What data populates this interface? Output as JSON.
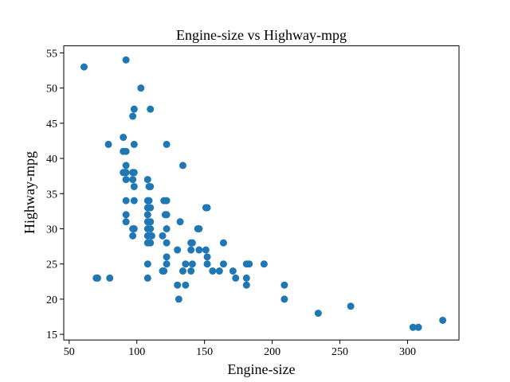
{
  "chart_data": {
    "type": "scatter",
    "title": "Engine-size vs Highway-mpg",
    "xlabel": "Engine-size",
    "ylabel": "Highway-mpg",
    "xlim": [
      46,
      338
    ],
    "ylim": [
      14.2,
      56.0
    ],
    "xticks": [
      50,
      100,
      150,
      200,
      250,
      300
    ],
    "yticks": [
      15,
      20,
      25,
      30,
      35,
      40,
      45,
      50,
      55
    ],
    "grid": false,
    "legend": "none",
    "marker_color": "#1f77b4",
    "series": [
      {
        "points": [
          [
            61,
            53
          ],
          [
            92,
            54
          ],
          [
            103,
            50
          ],
          [
            110,
            47
          ],
          [
            98,
            47
          ],
          [
            97,
            46
          ],
          [
            79,
            42
          ],
          [
            98,
            42
          ],
          [
            122,
            42
          ],
          [
            90,
            43
          ],
          [
            90,
            41
          ],
          [
            92,
            41
          ],
          [
            134,
            39
          ],
          [
            92,
            39
          ],
          [
            90,
            38
          ],
          [
            91,
            38
          ],
          [
            92,
            38
          ],
          [
            97,
            38
          ],
          [
            98,
            38
          ],
          [
            92,
            37
          ],
          [
            97,
            37
          ],
          [
            108,
            37
          ],
          [
            98,
            36
          ],
          [
            109,
            36
          ],
          [
            110,
            36
          ],
          [
            92,
            34
          ],
          [
            98,
            34
          ],
          [
            108,
            34
          ],
          [
            109,
            34
          ],
          [
            120,
            34
          ],
          [
            122,
            34
          ],
          [
            108,
            33
          ],
          [
            110,
            33
          ],
          [
            151,
            33
          ],
          [
            152,
            33
          ],
          [
            92,
            32
          ],
          [
            108,
            32
          ],
          [
            121,
            32
          ],
          [
            122,
            32
          ],
          [
            92,
            31
          ],
          [
            108,
            31
          ],
          [
            110,
            31
          ],
          [
            132,
            31
          ],
          [
            97,
            30
          ],
          [
            98,
            30
          ],
          [
            108,
            30
          ],
          [
            110,
            30
          ],
          [
            122,
            30
          ],
          [
            145,
            30
          ],
          [
            146,
            30
          ],
          [
            97,
            29
          ],
          [
            108,
            29
          ],
          [
            110,
            29
          ],
          [
            111,
            29
          ],
          [
            119,
            29
          ],
          [
            108,
            28
          ],
          [
            110,
            28
          ],
          [
            122,
            28
          ],
          [
            140,
            28
          ],
          [
            141,
            28
          ],
          [
            164,
            28
          ],
          [
            130,
            27
          ],
          [
            140,
            27
          ],
          [
            146,
            27
          ],
          [
            151,
            27
          ],
          [
            122,
            26
          ],
          [
            152,
            26
          ],
          [
            108,
            25
          ],
          [
            122,
            25
          ],
          [
            136,
            25
          ],
          [
            141,
            25
          ],
          [
            152,
            25
          ],
          [
            164,
            25
          ],
          [
            181,
            25
          ],
          [
            183,
            25
          ],
          [
            194,
            25
          ],
          [
            119,
            24
          ],
          [
            120,
            24
          ],
          [
            134,
            24
          ],
          [
            140,
            24
          ],
          [
            156,
            24
          ],
          [
            161,
            24
          ],
          [
            171,
            24
          ],
          [
            70,
            23
          ],
          [
            71,
            23
          ],
          [
            80,
            23
          ],
          [
            108,
            23
          ],
          [
            173,
            23
          ],
          [
            181,
            23
          ],
          [
            130,
            22
          ],
          [
            136,
            22
          ],
          [
            181,
            22
          ],
          [
            209,
            22
          ],
          [
            131,
            20
          ],
          [
            209,
            20
          ],
          [
            258,
            19
          ],
          [
            234,
            18
          ],
          [
            326,
            17
          ],
          [
            304,
            16
          ],
          [
            308,
            16
          ]
        ]
      }
    ]
  }
}
